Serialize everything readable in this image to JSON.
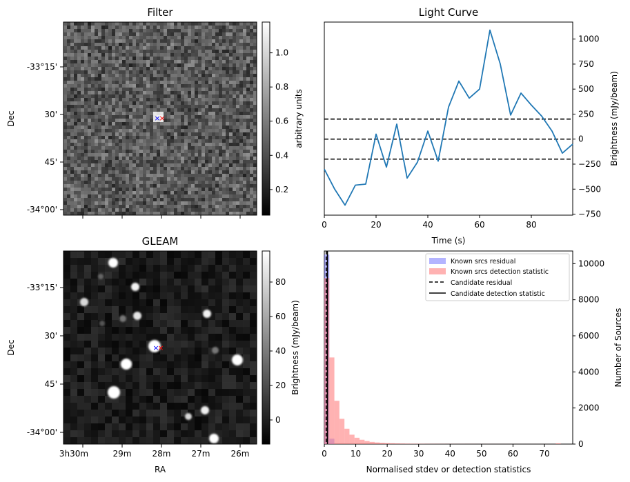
{
  "chart_data": [
    {
      "type": "heatmap",
      "title": "Filter",
      "xlabel": "",
      "ylabel": "Dec",
      "dec_ticks": [
        "-33°15'",
        "30'",
        "45'",
        "-34°00'"
      ],
      "colorbar": {
        "label": "arbitrary units",
        "range": [
          0.05,
          1.18
        ],
        "ticks": [
          0.2,
          0.4,
          0.6,
          0.8,
          1.0
        ],
        "tick_labels": [
          "0.2",
          "0.4",
          "0.6",
          "0.8",
          "1.0"
        ]
      },
      "markers": [
        {
          "symbol": "x",
          "color": "#0000ff"
        },
        {
          "symbol": "x",
          "color": "#ff0000"
        }
      ]
    },
    {
      "type": "line",
      "title": "Light Curve",
      "xlabel": "Time (s)",
      "ylabel": "Brightness (mJy/beam)",
      "xlim": [
        0,
        96
      ],
      "ylim": [
        -760,
        1170
      ],
      "x_ticks": [
        0,
        20,
        40,
        60,
        80
      ],
      "y_ticks": [
        -750,
        -500,
        -250,
        0,
        250,
        500,
        750,
        1000
      ],
      "y_tick_labels": [
        "−750",
        "−500",
        "−250",
        "0",
        "250",
        "500",
        "750",
        "1000"
      ],
      "series": [
        {
          "name": "light curve",
          "color": "#1f77b4",
          "x": [
            0,
            4,
            8,
            12,
            16,
            20,
            24,
            28,
            32,
            36,
            40,
            44,
            48,
            52,
            56,
            60,
            64,
            68,
            72,
            76,
            80,
            84,
            88,
            92,
            96
          ],
          "y": [
            -300,
            -500,
            -660,
            -460,
            -450,
            50,
            -280,
            150,
            -390,
            -230,
            80,
            -220,
            320,
            580,
            410,
            500,
            1090,
            750,
            240,
            460,
            340,
            230,
            80,
            -140,
            -50
          ]
        }
      ],
      "hlines": [
        {
          "y": 200,
          "style": "dashed",
          "color": "#000000"
        },
        {
          "y": 0,
          "style": "dashed",
          "color": "#000000"
        },
        {
          "y": -200,
          "style": "dashed",
          "color": "#000000"
        }
      ]
    },
    {
      "type": "heatmap",
      "title": "GLEAM",
      "xlabel": "RA",
      "ylabel": "Dec",
      "ra_ticks": [
        "3h30m",
        "29m",
        "28m",
        "27m",
        "26m"
      ],
      "dec_ticks": [
        "-33°15'",
        "30'",
        "45'",
        "-34°00'"
      ],
      "colorbar": {
        "label": "Brightness (mJy/beam)",
        "range": [
          -14,
          98
        ],
        "ticks": [
          0,
          20,
          40,
          60,
          80
        ],
        "tick_labels": [
          "0",
          "20",
          "40",
          "60",
          "80"
        ]
      },
      "markers": [
        {
          "symbol": "x",
          "color": "#0000ff"
        },
        {
          "symbol": "x",
          "color": "#ff0000"
        }
      ]
    },
    {
      "type": "bar",
      "subtype": "histogram",
      "xlabel": "Normalised stdev or detection statistics",
      "ylabel": "Number of Sources",
      "xlim": [
        0,
        79
      ],
      "ylim": [
        0,
        10700
      ],
      "x_ticks": [
        0,
        10,
        20,
        30,
        40,
        50,
        60,
        70
      ],
      "y_ticks": [
        0,
        2000,
        4000,
        6000,
        8000,
        10000
      ],
      "bin_width": 1.6,
      "series": [
        {
          "name": "Known srcs residual",
          "color": "#6a6aff",
          "bin_starts": [
            0,
            1.6
          ],
          "values": [
            10500,
            300
          ]
        },
        {
          "name": "Known srcs detection statistic",
          "color": "#ff7f7f",
          "bin_starts": [
            0,
            1.6,
            3.2,
            4.8,
            6.4,
            8.0,
            9.6,
            11.2,
            12.8,
            14.4,
            16.0,
            17.6,
            19.2,
            20.8,
            22.4,
            24.0,
            25.6,
            27.2,
            28.8,
            30.4,
            32.0,
            33.6,
            35.2,
            36.8,
            38.4,
            40.0,
            41.6,
            43.2,
            44.8,
            46.4,
            48.0,
            49.6,
            51.2,
            52.8,
            54.4,
            56.0,
            57.6,
            59.2,
            60.8,
            62.4,
            64.0,
            65.6,
            67.2,
            68.8,
            70.4,
            72.0,
            73.6
          ],
          "values": [
            9200,
            4800,
            2400,
            1400,
            850,
            520,
            350,
            240,
            170,
            120,
            90,
            70,
            55,
            45,
            36,
            30,
            25,
            20,
            18,
            15,
            13,
            11,
            10,
            9,
            8,
            7,
            6,
            6,
            5,
            5,
            4,
            4,
            4,
            3,
            3,
            3,
            3,
            2,
            2,
            2,
            2,
            2,
            2,
            2,
            2,
            2,
            40
          ]
        }
      ],
      "vlines": [
        {
          "name": "Candidate residual",
          "x": 0.6,
          "style": "dashed",
          "color": "#000000"
        },
        {
          "name": "Candidate detection statistic",
          "x": 1.0,
          "style": "solid",
          "color": "#000000"
        }
      ],
      "legend": {
        "position": "top-right",
        "entries": [
          "Known srcs residual",
          "Known srcs detection statistic",
          "Candidate residual",
          "Candidate detection statistic"
        ]
      }
    }
  ]
}
